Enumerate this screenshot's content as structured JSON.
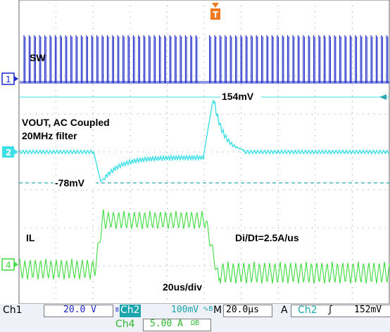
{
  "colors": {
    "ch1": "#1c28c8",
    "ch2": "#3ee0e6",
    "ch4": "#3cdc3c",
    "trigger": "#f07820",
    "grid": "#9a9a9a",
    "statusbar": "#eef1f7"
  },
  "annotations": {
    "sw": "SW",
    "vout_line1": "VOUT, AC Coupled",
    "vout_line2": "20MHz filter",
    "peak": "154mV",
    "dip": "-78mV",
    "il": "IL",
    "didt": "Di/Dt=2.5A/us",
    "timebase": "20us/div"
  },
  "markers": {
    "ch1": "1",
    "ch2": "2",
    "ch4": "4",
    "trigger": "T"
  },
  "statusbar": {
    "ch1_name": "Ch1",
    "ch1_scale": "20.0 V",
    "ch1_bw": "B",
    "ch2_name": "Ch2",
    "ch2_scale": "100mV",
    "ch2_coupling": "∿B",
    "timebase_label": "M",
    "timebase_value": "20.0µs",
    "trigger_mode": "A",
    "trigger_source": "Ch2",
    "trigger_slope": "ʃ",
    "trigger_level": "152mV",
    "ch4_name": "Ch4",
    "ch4_scale": "5.00 A",
    "ch4_unit": "ΩB"
  }
}
